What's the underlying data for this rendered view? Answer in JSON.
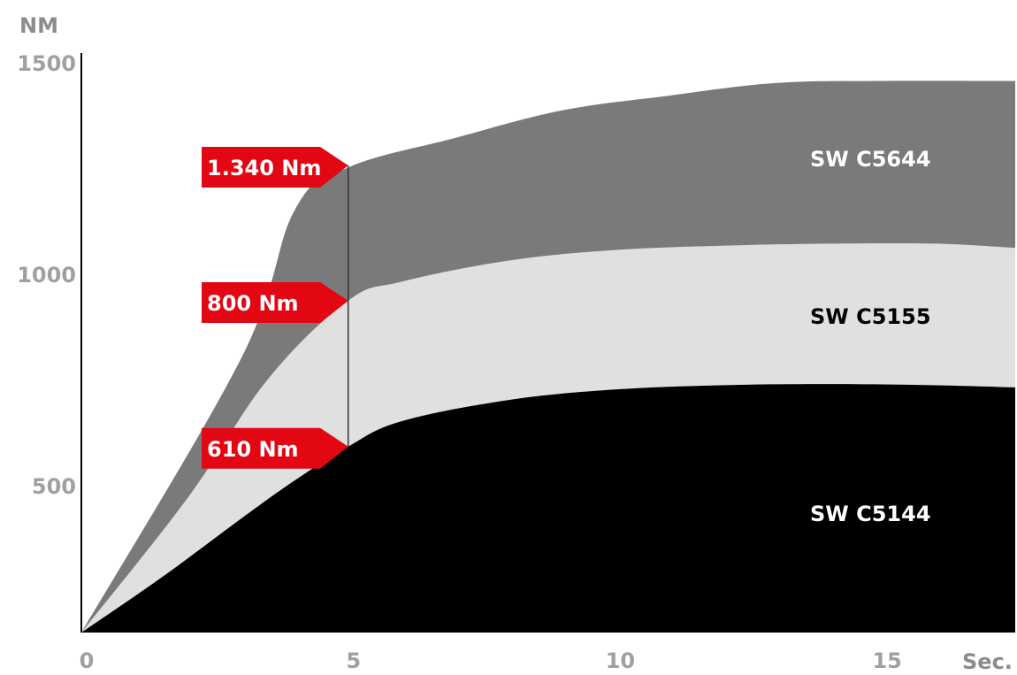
{
  "chart_data": {
    "type": "area",
    "ylabel": "NM",
    "xlabel": "Sec.",
    "xlim": [
      0,
      17.5
    ],
    "ylim": [
      150,
      1500
    ],
    "x_ticks": [
      "0",
      "5",
      "10",
      "15"
    ],
    "y_ticks": [
      "500",
      "1000",
      "1500"
    ],
    "grid": false,
    "series": [
      {
        "name": "SW C5644",
        "color": "#7a7a7a",
        "label_color": "#ffffff",
        "points": [
          [
            0,
            150
          ],
          [
            3.0,
            800
          ],
          [
            4.0,
            1150
          ],
          [
            5.0,
            1250
          ],
          [
            7.0,
            1320
          ],
          [
            9.0,
            1385
          ],
          [
            11.0,
            1420
          ],
          [
            13.0,
            1450
          ],
          [
            15.0,
            1455
          ],
          [
            17.5,
            1455
          ]
        ]
      },
      {
        "name": "SW C5155",
        "color": "#e0e0e0",
        "label_color": "#000000",
        "points": [
          [
            0,
            150
          ],
          [
            2.0,
            470
          ],
          [
            3.5,
            750
          ],
          [
            5.0,
            935
          ],
          [
            6.0,
            980
          ],
          [
            8.0,
            1030
          ],
          [
            10.0,
            1055
          ],
          [
            12.0,
            1065
          ],
          [
            14.0,
            1070
          ],
          [
            16.0,
            1070
          ],
          [
            17.5,
            1060
          ]
        ]
      },
      {
        "name": "SW C5144",
        "color": "#000000",
        "label_color": "#ffffff",
        "points": [
          [
            0,
            150
          ],
          [
            1.5,
            280
          ],
          [
            3.0,
            420
          ],
          [
            4.0,
            510
          ],
          [
            5.0,
            590
          ],
          [
            6.0,
            650
          ],
          [
            8.0,
            700
          ],
          [
            10.0,
            725
          ],
          [
            12.0,
            735
          ],
          [
            14.0,
            738
          ],
          [
            16.0,
            735
          ],
          [
            17.5,
            730
          ]
        ]
      }
    ],
    "annotations": [
      {
        "text": "1.340 Nm",
        "x": 5,
        "y": 1255
      },
      {
        "text": "800 Nm",
        "x": 5,
        "y": 935
      },
      {
        "text": "610 Nm",
        "x": 5,
        "y": 590
      }
    ],
    "annotation_color": "#e30613"
  }
}
